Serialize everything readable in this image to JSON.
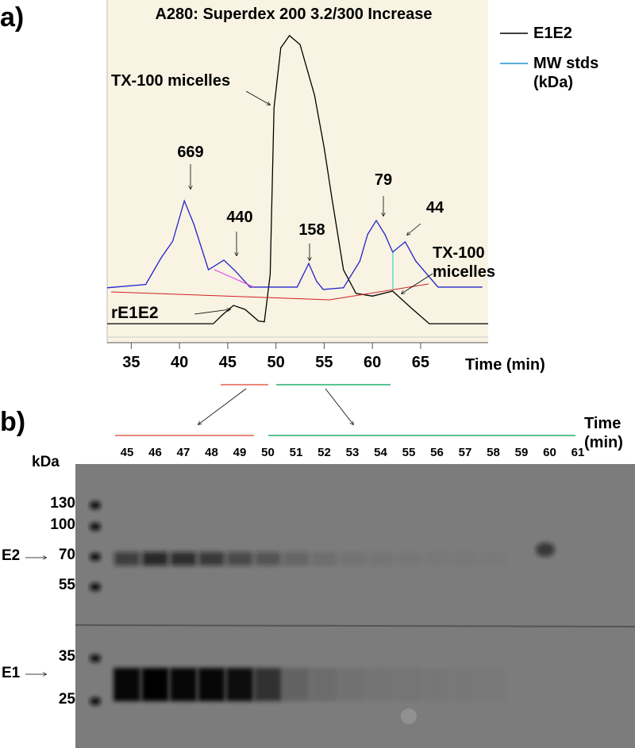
{
  "panel_a_label": "a)",
  "panel_b_label": "b)",
  "chart_data": {
    "type": "line",
    "title": "A280: Superdex 200 3.2/300 Increase",
    "x_label": "Time (min)",
    "xlim": [
      32.5,
      72
    ],
    "xticks": [
      35,
      40,
      45,
      50,
      55,
      60,
      65
    ],
    "ylim": [
      0,
      100
    ],
    "series": [
      {
        "name": "E1E2",
        "color": "#000000",
        "x": [
          32.5,
          43.5,
          44.5,
          45.6,
          46.8,
          48.2,
          48.8,
          49.4,
          49.8,
          50.5,
          51.4,
          52.5,
          54,
          55,
          55.8,
          57,
          58.3,
          60,
          62.1,
          64,
          65.9,
          72
        ],
        "values": [
          5.2,
          5.2,
          8,
          10.7,
          9.5,
          6,
          5.8,
          20,
          70,
          88,
          91.7,
          89,
          73.8,
          58,
          42.9,
          21.4,
          14.3,
          13.5,
          15,
          10,
          5.2,
          5.2
        ]
      },
      {
        "name": "MW stds (kDa)",
        "color": "#2323c8",
        "x": [
          32.5,
          36.5,
          38.1,
          39.3,
          40.5,
          41.5,
          43,
          44.6,
          45.8,
          47.3,
          52.2,
          53.4,
          54.2,
          54.9,
          57,
          58.7,
          59.5,
          60.4,
          61.3,
          62.1,
          63.4,
          64.5,
          66.8,
          71.4
        ],
        "values": [
          16,
          17,
          25,
          30,
          42.1,
          35,
          21.4,
          24.3,
          21,
          16.2,
          16.2,
          23.3,
          18,
          15.5,
          16,
          24,
          32,
          36.2,
          32,
          26.7,
          29.8,
          24,
          16.2,
          16.2
        ]
      }
    ],
    "annotations": [
      "TX-100 micelles",
      "669",
      "440",
      "158",
      "79",
      "44",
      "TX-100 micelles",
      "rE1E2"
    ]
  },
  "gel": {
    "time_header": "Time (min)",
    "lanes": [
      45,
      46,
      47,
      48,
      49,
      50,
      51,
      52,
      53,
      54,
      55,
      56,
      57,
      58,
      59,
      60,
      61
    ],
    "unit_label": "kDa",
    "markers": [
      130,
      100,
      70,
      55,
      35,
      25
    ],
    "bands": [
      "E2",
      "E1"
    ]
  }
}
